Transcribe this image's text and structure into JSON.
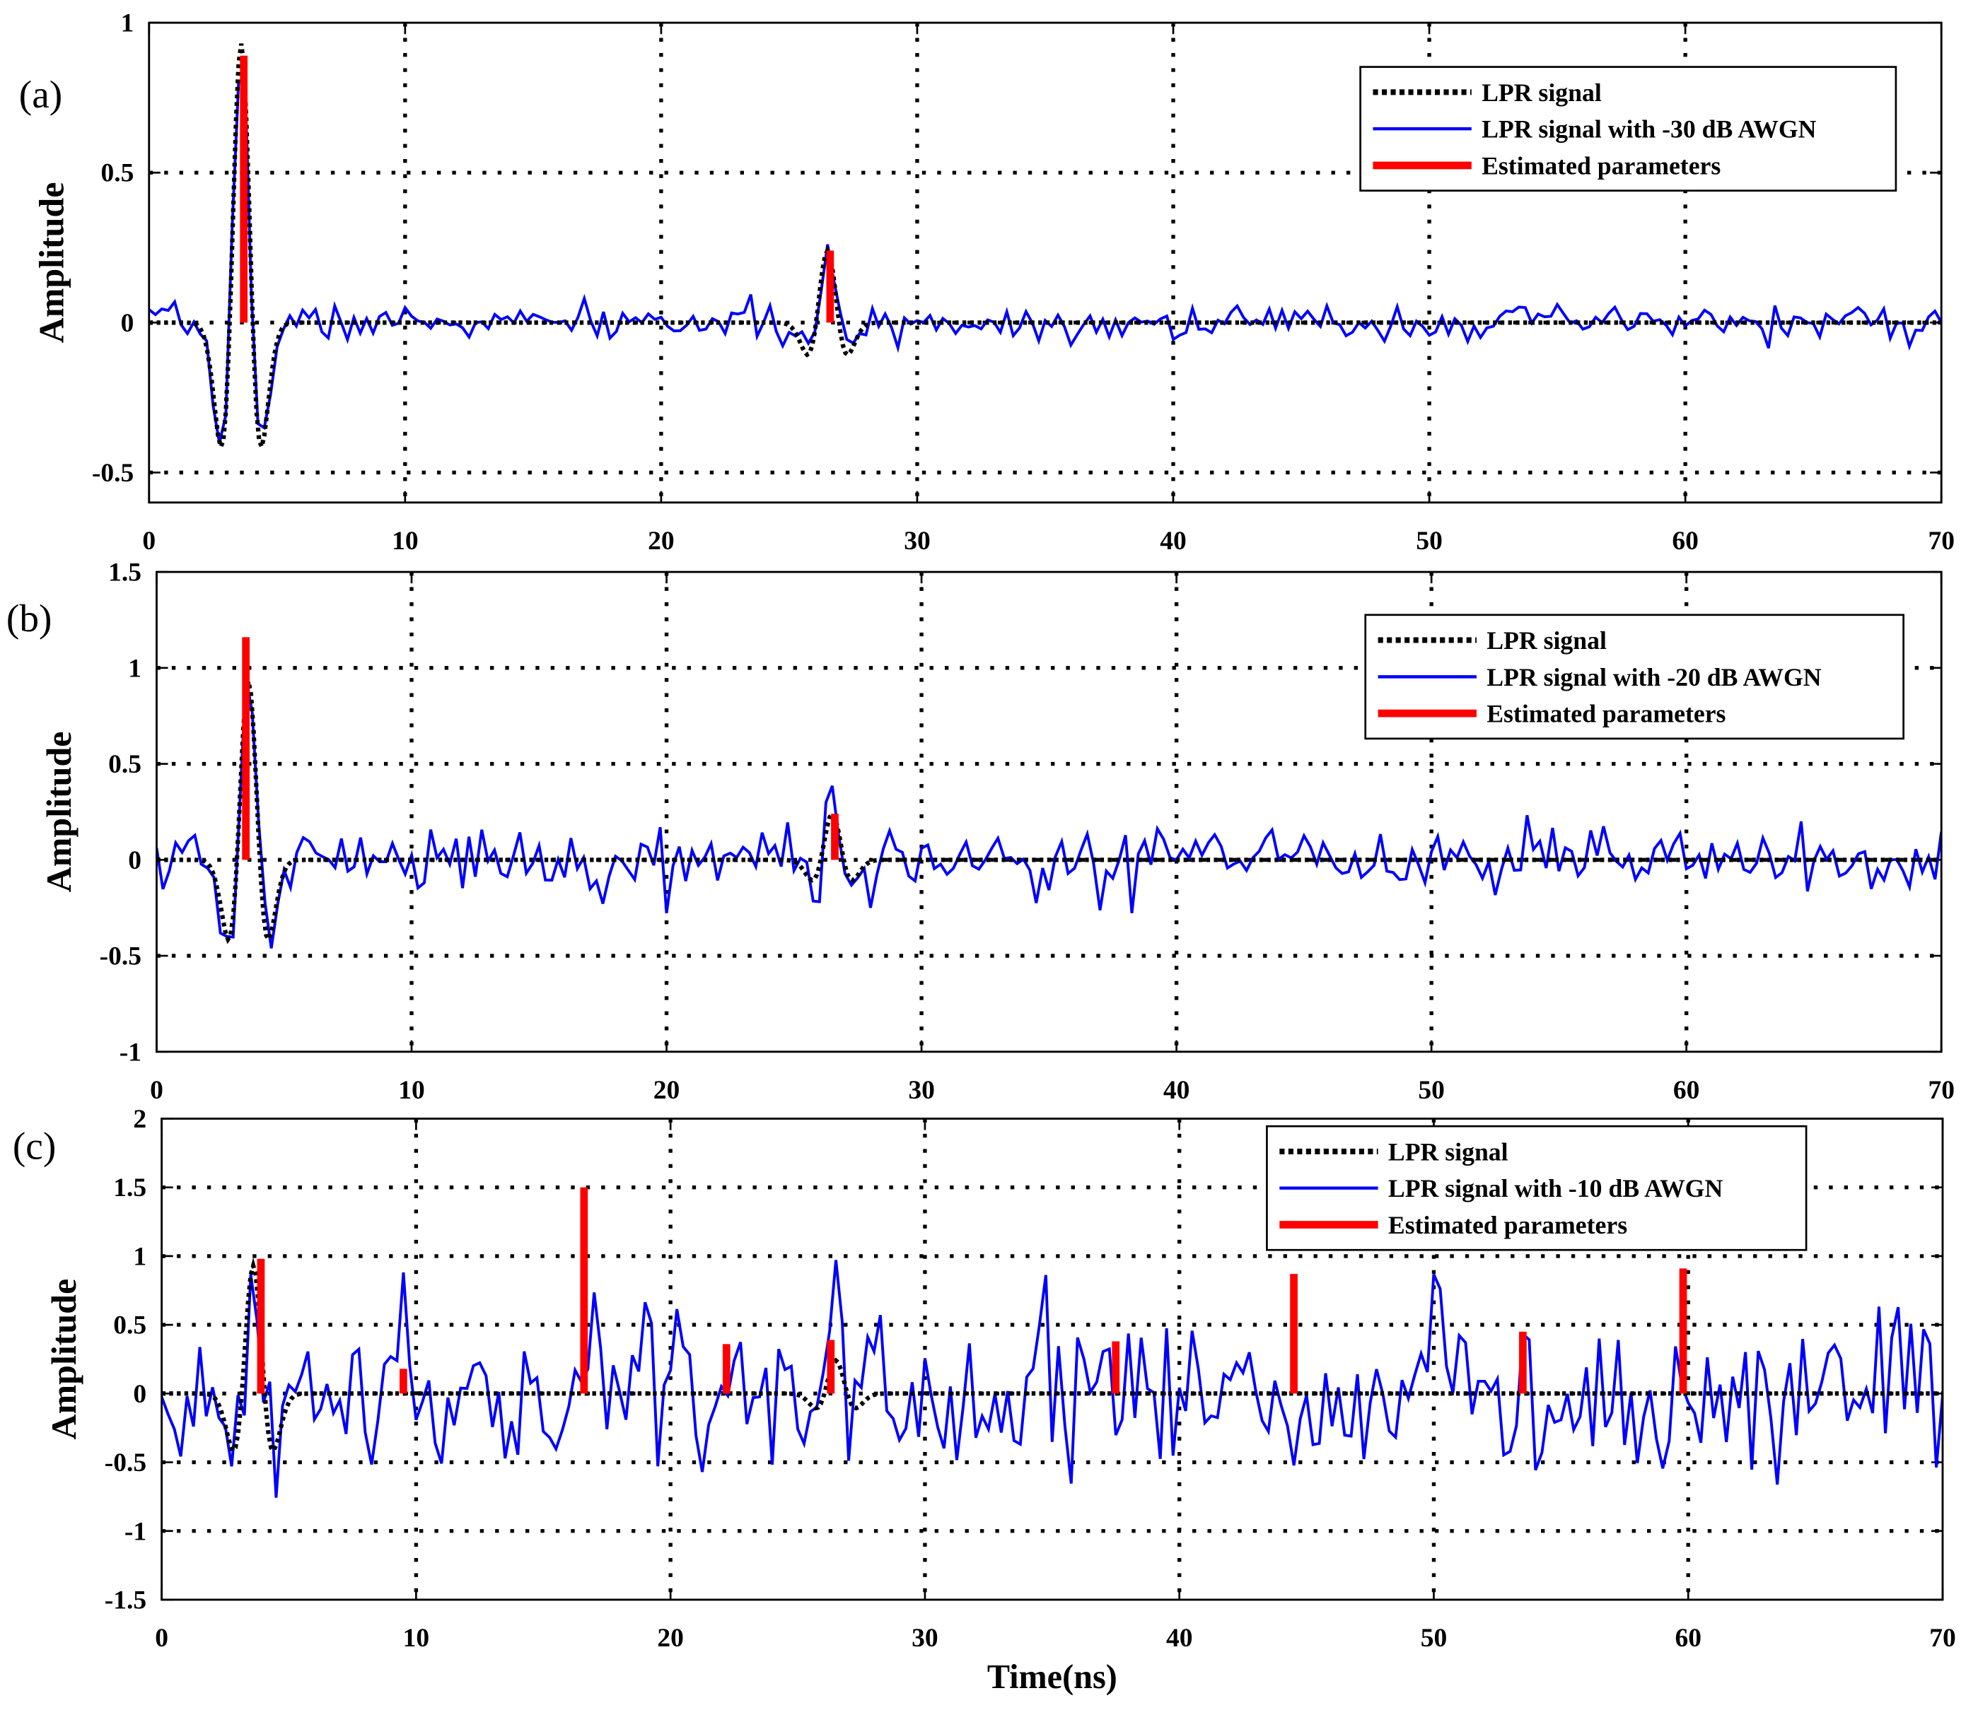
{
  "colors": {
    "clean": "#000000",
    "noisy": "#0000ff",
    "estimated": "#ff0000",
    "grid": "#000000"
  },
  "chart_data": [
    {
      "type": "line",
      "panel_label": "(a)",
      "ylabel": "Amplitude",
      "xlabel": "",
      "xlim": [
        0,
        70
      ],
      "ylim": [
        -0.6,
        1
      ],
      "xticks": [
        0,
        10,
        20,
        30,
        40,
        50,
        60,
        70
      ],
      "xtick_labels": [
        "0",
        "10",
        "20",
        "30",
        "40",
        "50",
        "60",
        "70"
      ],
      "yticks": [
        -0.5,
        0,
        0.5,
        1
      ],
      "ytick_labels": [
        "-0.5",
        "0",
        "0.5",
        "1"
      ],
      "legend_position": "top-right",
      "legend": [
        "LPR signal",
        "LPR signal with -30 dB AWGN",
        "Estimated parameters"
      ],
      "noise_std": 0.03,
      "noise_seed": 7,
      "estimated_parameters": [
        {
          "x": 3.7,
          "y": 0.89
        },
        {
          "x": 26.6,
          "y": 0.24
        }
      ]
    },
    {
      "type": "line",
      "panel_label": "(b)",
      "ylabel": "Amplitude",
      "xlabel": "",
      "xlim": [
        0,
        70
      ],
      "ylim": [
        -1,
        1.5
      ],
      "xticks": [
        0,
        10,
        20,
        30,
        40,
        50,
        60,
        70
      ],
      "xtick_labels": [
        "0",
        "10",
        "20",
        "30",
        "40",
        "50",
        "60",
        "70"
      ],
      "yticks": [
        -1,
        -0.5,
        0,
        0.5,
        1,
        1.5
      ],
      "ytick_labels": [
        "-1",
        "-0.5",
        "0",
        "0.5",
        "1",
        "1.5"
      ],
      "legend_position": "top-right",
      "legend": [
        "LPR signal",
        "LPR signal with -20 dB AWGN",
        "Estimated parameters"
      ],
      "noise_std": 0.09,
      "noise_seed": 21,
      "estimated_parameters": [
        {
          "x": 3.5,
          "y": 1.16
        },
        {
          "x": 26.6,
          "y": 0.24
        }
      ]
    },
    {
      "type": "line",
      "panel_label": "(c)",
      "ylabel": "Amplitude",
      "xlabel": "Time(ns)",
      "xlim": [
        0,
        70
      ],
      "ylim": [
        -1.5,
        2
      ],
      "xticks": [
        0,
        10,
        20,
        30,
        40,
        50,
        60,
        70
      ],
      "xtick_labels": [
        "0",
        "10",
        "20",
        "30",
        "40",
        "50",
        "60",
        "70"
      ],
      "yticks": [
        -1.5,
        -1,
        -0.5,
        0,
        0.5,
        1,
        1.5,
        2
      ],
      "ytick_labels": [
        "-1.5",
        "-1",
        "-0.5",
        "0",
        "0.5",
        "1",
        "1.5",
        "2"
      ],
      "legend_position": "top-right",
      "legend": [
        "LPR signal",
        "LPR signal with -10 dB AWGN",
        "Estimated parameters"
      ],
      "noise_std": 0.3,
      "noise_seed": 99,
      "estimated_parameters": [
        {
          "x": 3.9,
          "y": 0.98
        },
        {
          "x": 9.5,
          "y": 0.18
        },
        {
          "x": 16.6,
          "y": 1.5
        },
        {
          "x": 22.2,
          "y": 0.36
        },
        {
          "x": 26.3,
          "y": 0.39
        },
        {
          "x": 37.5,
          "y": 0.38
        },
        {
          "x": 44.5,
          "y": 0.87
        },
        {
          "x": 53.5,
          "y": 0.45
        },
        {
          "x": 59.8,
          "y": 0.91
        }
      ]
    }
  ]
}
